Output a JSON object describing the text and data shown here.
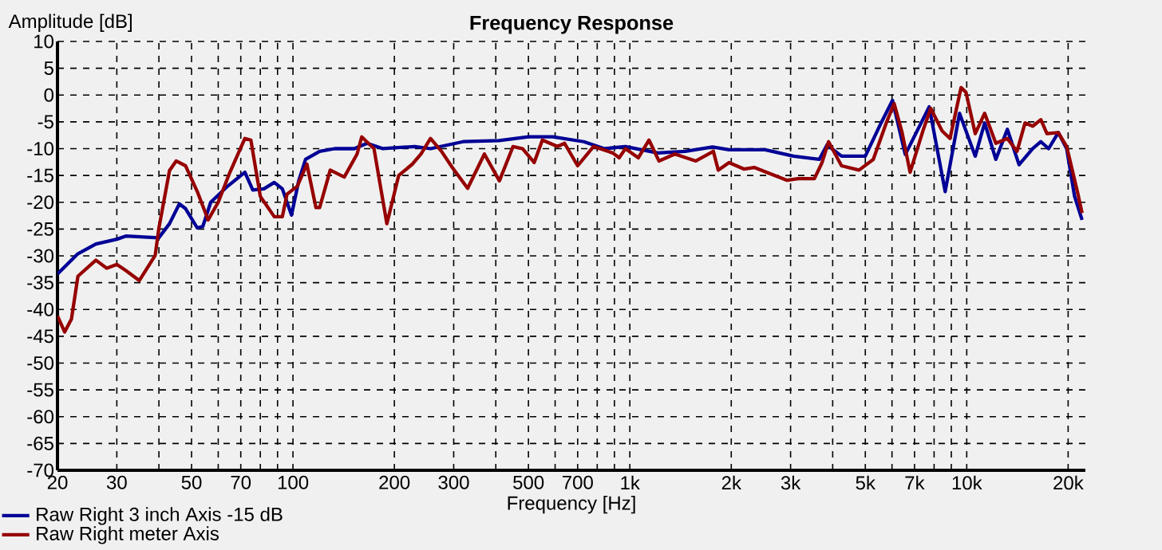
{
  "chart_data": {
    "type": "line",
    "title": "Frequency Response",
    "xlabel": "Frequency [Hz]",
    "ylabel": "Amplitude [dB]",
    "log": "x",
    "grid": true,
    "legend": "bottom left",
    "line_style": "solid",
    "marker": "none",
    "xlim": [
      20,
      22500
    ],
    "ylim": [
      -70,
      10
    ],
    "yticks": [
      -70,
      -65,
      -60,
      -55,
      -50,
      -45,
      -40,
      -35,
      -30,
      -25,
      -20,
      -15,
      -10,
      -5,
      0,
      5,
      10
    ],
    "xticks": [
      20,
      30,
      {
        "value": 40,
        "label": null
      },
      50,
      {
        "value": 60,
        "label": null
      },
      70,
      {
        "value": 80,
        "label": null
      },
      {
        "value": 90,
        "label": null
      },
      100,
      200,
      300,
      {
        "value": 400,
        "label": null
      },
      500,
      {
        "value": 600,
        "label": null
      },
      700,
      {
        "value": 800,
        "label": null
      },
      {
        "value": 900,
        "label": null
      },
      {
        "value": 1000,
        "label": "1k"
      },
      {
        "value": 2000,
        "label": "2k"
      },
      {
        "value": 3000,
        "label": "3k"
      },
      {
        "value": 4000,
        "label": null
      },
      {
        "value": 5000,
        "label": "5k"
      },
      {
        "value": 6000,
        "label": null
      },
      {
        "value": 7000,
        "label": "7k"
      },
      {
        "value": 8000,
        "label": null
      },
      {
        "value": 9000,
        "label": null
      },
      {
        "value": 10000,
        "label": "10k"
      },
      {
        "value": 20000,
        "label": "20k"
      }
    ],
    "series": [
      {
        "name": "Raw Right 3 inch Axis -15 dB",
        "color": "#000096",
        "x": [
          20,
          23,
          26,
          30,
          32,
          39,
          40,
          43,
          46,
          48,
          52,
          54,
          57,
          64,
          72,
          76,
          82,
          88,
          93,
          99,
          104,
          109,
          120,
          133,
          152,
          166,
          185,
          230,
          256,
          320,
          409,
          500,
          590,
          730,
          840,
          970,
          1210,
          1460,
          1760,
          1970,
          2520,
          3060,
          3650,
          3850,
          4250,
          5000,
          5570,
          6020,
          6570,
          7740,
          8630,
          9520,
          10600,
          11300,
          12200,
          13200,
          14300,
          15700,
          16600,
          17500,
          18700,
          19800,
          20900,
          22000
        ],
        "values": [
          -33.4,
          -29.6,
          -27.8,
          -26.9,
          -26.3,
          -26.6,
          -26.6,
          -24,
          -20.3,
          -21.2,
          -24.8,
          -24.5,
          -20,
          -17,
          -14.4,
          -17.7,
          -17.5,
          -16.3,
          -17.5,
          -22.4,
          -16,
          -12,
          -10.5,
          -10,
          -10,
          -9,
          -10,
          -9.6,
          -10,
          -8.7,
          -8.5,
          -7.8,
          -7.8,
          -8.7,
          -10,
          -9.6,
          -10.8,
          -10.5,
          -9.7,
          -10.2,
          -10.2,
          -11.4,
          -12,
          -9.3,
          -11.4,
          -11.4,
          -5.2,
          -1,
          -11.1,
          -2.2,
          -18,
          -3.4,
          -11.4,
          -5.2,
          -12,
          -6.4,
          -13,
          -10,
          -8.7,
          -10,
          -7,
          -10,
          -18.9,
          -23.3
        ]
      },
      {
        "name": "Raw Right meter Axis",
        "color": "#960000",
        "x": [
          20,
          21,
          22,
          23,
          26,
          28,
          30,
          32,
          35,
          39,
          40,
          43,
          45,
          48,
          52,
          56,
          60,
          65,
          72,
          75,
          80,
          88,
          93,
          96,
          103,
          110,
          117,
          120,
          129,
          142,
          155,
          160,
          174,
          190,
          206,
          226,
          240,
          256,
          276,
          297,
          330,
          370,
          410,
          450,
          480,
          520,
          550,
          610,
          640,
          700,
          780,
          890,
          930,
          970,
          1060,
          1140,
          1220,
          1360,
          1570,
          1770,
          1830,
          1970,
          2180,
          2340,
          2540,
          2930,
          3160,
          3530,
          3720,
          3890,
          4250,
          4790,
          5280,
          5770,
          6090,
          6430,
          6790,
          7410,
          7820,
          8450,
          8920,
          9620,
          9950,
          10600,
          11300,
          12200,
          13200,
          14100,
          14900,
          15700,
          16600,
          17300,
          18700,
          19800,
          21300,
          22000
        ],
        "values": [
          -41.2,
          -44.2,
          -41.8,
          -33.8,
          -30.8,
          -32.3,
          -31.6,
          -32.8,
          -34.6,
          -29.9,
          -24.8,
          -14.1,
          -12.3,
          -13.2,
          -18,
          -23.3,
          -20,
          -14.4,
          -8.1,
          -8.4,
          -18.9,
          -22.7,
          -22.7,
          -18.5,
          -17,
          -12.9,
          -21,
          -21,
          -14,
          -15.3,
          -11,
          -7.8,
          -10,
          -24,
          -15,
          -12.9,
          -11,
          -8.1,
          -10.5,
          -13.5,
          -17.4,
          -11,
          -16,
          -9.6,
          -10,
          -12.6,
          -8.4,
          -9.6,
          -9,
          -13.2,
          -9.6,
          -10.8,
          -11.7,
          -10,
          -11.7,
          -8.4,
          -12.3,
          -11,
          -12.3,
          -10.5,
          -14,
          -12.6,
          -13.8,
          -13.5,
          -14.4,
          -15.9,
          -15.6,
          -15.6,
          -12.6,
          -8.7,
          -13.2,
          -14,
          -12,
          -5.2,
          -1.6,
          -7,
          -14.4,
          -6.7,
          -2.5,
          -6.7,
          -8.1,
          1.4,
          0.5,
          -7.2,
          -3.4,
          -9,
          -8.1,
          -10.5,
          -5.2,
          -5.8,
          -4.6,
          -7.2,
          -7,
          -9.6,
          -18,
          -22
        ]
      }
    ]
  }
}
